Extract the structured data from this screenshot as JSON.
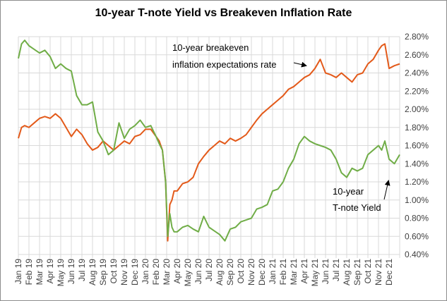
{
  "chart_data": {
    "type": "line",
    "title": "10-year T-note Yield vs Breakeven Inflation Rate",
    "xlabel": "",
    "ylabel": "",
    "ylim": [
      0.4,
      2.8
    ],
    "y_ticks": [
      "0.40%",
      "0.60%",
      "0.80%",
      "1.00%",
      "1.20%",
      "1.40%",
      "1.60%",
      "1.80%",
      "2.00%",
      "2.20%",
      "2.40%",
      "2.60%",
      "2.80%"
    ],
    "y_axis_side": "right",
    "grid": true,
    "x_ticks": [
      "Jan 19",
      "Feb 19",
      "Mar 19",
      "Apr 19",
      "May 19",
      "Jun 19",
      "Jul 19",
      "Aug 19",
      "Sep 19",
      "Oct 19",
      "Nov 19",
      "Dec 19",
      "Jan 20",
      "Feb 20",
      "Mar 20",
      "Apr 20",
      "May 20",
      "Jun 20",
      "Jul 20",
      "Aug 20",
      "Sep 20",
      "Oct 20",
      "Nov 20",
      "Dec 20",
      "Jan 21",
      "Feb 21",
      "Mar 21",
      "Apr 21",
      "May 21",
      "Jun 21",
      "Jul 21",
      "Aug 21",
      "Sep 21",
      "Oct 21",
      "Nov 21",
      "Dec 21"
    ],
    "x_months": [
      0,
      0.3,
      0.6,
      1,
      1.5,
      2,
      2.5,
      3,
      3.5,
      4,
      4.5,
      5,
      5.5,
      6,
      6.5,
      7,
      7.5,
      8,
      8.5,
      9,
      9.5,
      10,
      10.5,
      11,
      11.5,
      12,
      12.5,
      13,
      13.3,
      13.6,
      13.9,
      14.1,
      14.3,
      14.5,
      14.7,
      15,
      15.5,
      16,
      16.5,
      17,
      17.5,
      18,
      18.5,
      19,
      19.5,
      20,
      20.5,
      21,
      21.5,
      22,
      22.5,
      23,
      23.5,
      24,
      24.5,
      25,
      25.5,
      26,
      26.5,
      27,
      27.5,
      28,
      28.5,
      29,
      29.5,
      30,
      30.5,
      31,
      31.5,
      32,
      32.5,
      33,
      33.5,
      34,
      34.3,
      34.6,
      35,
      35.5,
      36
    ],
    "series": [
      {
        "name": "10-year T-note Yield",
        "color": "#70ad47",
        "values": [
          2.56,
          2.72,
          2.76,
          2.7,
          2.66,
          2.62,
          2.65,
          2.58,
          2.45,
          2.5,
          2.45,
          2.42,
          2.15,
          2.05,
          2.05,
          2.08,
          1.75,
          1.65,
          1.5,
          1.55,
          1.85,
          1.68,
          1.78,
          1.82,
          1.88,
          1.8,
          1.82,
          1.7,
          1.62,
          1.55,
          1.2,
          0.6,
          0.85,
          0.7,
          0.65,
          0.65,
          0.7,
          0.72,
          0.68,
          0.65,
          0.82,
          0.7,
          0.66,
          0.62,
          0.55,
          0.68,
          0.7,
          0.76,
          0.78,
          0.8,
          0.9,
          0.92,
          0.95,
          1.1,
          1.12,
          1.2,
          1.35,
          1.45,
          1.62,
          1.7,
          1.65,
          1.62,
          1.6,
          1.58,
          1.55,
          1.45,
          1.3,
          1.25,
          1.35,
          1.32,
          1.35,
          1.5,
          1.55,
          1.6,
          1.55,
          1.65,
          1.45,
          1.4,
          1.5
        ]
      },
      {
        "name": "10-year breakeven inflation expectations rate",
        "color": "#e35a1a",
        "values": [
          1.68,
          1.8,
          1.82,
          1.8,
          1.85,
          1.9,
          1.92,
          1.9,
          1.95,
          1.9,
          1.8,
          1.7,
          1.78,
          1.72,
          1.62,
          1.55,
          1.58,
          1.65,
          1.6,
          1.55,
          1.6,
          1.65,
          1.62,
          1.7,
          1.72,
          1.78,
          1.78,
          1.7,
          1.65,
          1.55,
          1.2,
          0.55,
          0.95,
          1.0,
          1.1,
          1.1,
          1.18,
          1.2,
          1.25,
          1.4,
          1.48,
          1.55,
          1.6,
          1.65,
          1.62,
          1.68,
          1.65,
          1.68,
          1.72,
          1.8,
          1.88,
          1.95,
          2.0,
          2.05,
          2.1,
          2.15,
          2.22,
          2.25,
          2.3,
          2.35,
          2.38,
          2.45,
          2.55,
          2.4,
          2.38,
          2.35,
          2.4,
          2.35,
          2.3,
          2.38,
          2.4,
          2.5,
          2.55,
          2.65,
          2.7,
          2.72,
          2.45,
          2.48,
          2.5
        ]
      }
    ],
    "annotations": [
      {
        "lines": [
          "10-year breakeven",
          "inflation expectations rate"
        ]
      },
      {
        "lines": [
          "10-year",
          "T-note Yield"
        ]
      }
    ]
  }
}
